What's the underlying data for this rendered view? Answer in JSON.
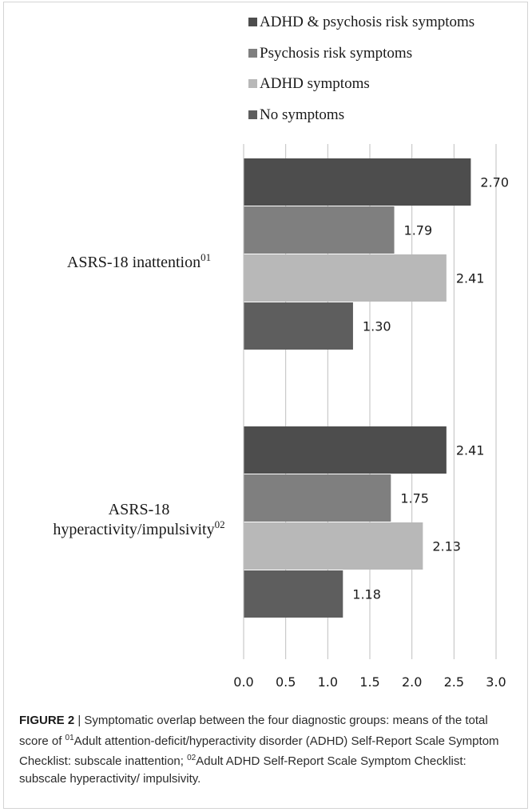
{
  "chart_data": {
    "type": "bar",
    "orientation": "horizontal",
    "categories": [
      "ASRS-18 inattention",
      "ASRS-18 hyperactivity/impulsivity"
    ],
    "category_markers": [
      "01",
      "02"
    ],
    "series": [
      {
        "name": "ADHD & psychosis risk symptoms",
        "values": [
          2.7,
          2.41
        ],
        "color": "#4d4d4d"
      },
      {
        "name": "Psychosis risk symptoms",
        "values": [
          1.79,
          1.75
        ],
        "color": "#7f7f7f"
      },
      {
        "name": "ADHD symptoms",
        "values": [
          2.41,
          2.13
        ],
        "color": "#b8b8b8"
      },
      {
        "name": "No symptoms",
        "values": [
          1.3,
          1.18
        ],
        "color": "#5e5e5e"
      }
    ],
    "xlim": [
      0,
      3.0
    ],
    "x_ticks": [
      "0.0",
      "0.5",
      "1.0",
      "1.5",
      "2.0",
      "2.5",
      "3.0"
    ],
    "data_labels": [
      [
        "2.70",
        "1.79",
        "2.41",
        "1.30"
      ],
      [
        "2.41",
        "1.75",
        "2.13",
        "1.18"
      ]
    ],
    "grid": true,
    "legend_position": "top-right"
  },
  "caption": {
    "label": "FIGURE 2",
    "separator": " | ",
    "text_1": "Symptomatic overlap between the four diagnostic groups: means of the total score of ",
    "marker_1": "01",
    "text_2": "Adult attention-deficit/hyperactivity disorder (ADHD) Self-Report Scale Symptom Checklist: subscale inattention; ",
    "marker_2": "02",
    "text_3": "Adult ADHD Self-Report Scale Symptom Checklist: subscale hyperactivity/ impulsivity."
  }
}
